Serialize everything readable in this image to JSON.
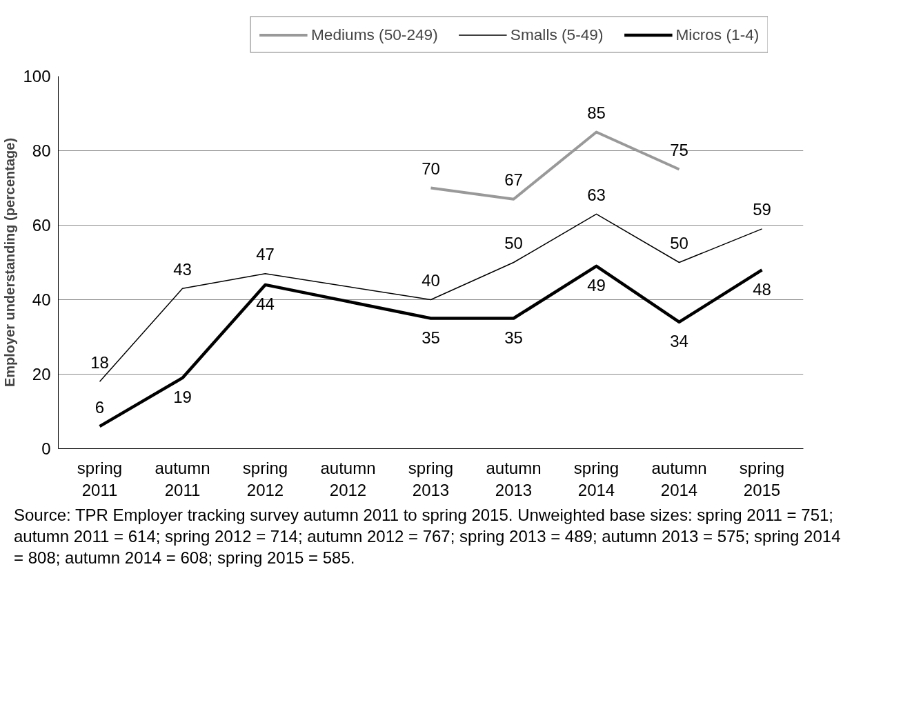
{
  "chart_data": {
    "type": "line",
    "categories": [
      "spring 2011",
      "autumn 2011",
      "spring 2012",
      "autumn 2012",
      "spring 2013",
      "autumn 2013",
      "spring 2014",
      "autumn 2014",
      "spring 2015"
    ],
    "series": [
      {
        "name": "Mediums (50-249)",
        "color": "#999999",
        "values": [
          null,
          null,
          null,
          null,
          70,
          67,
          85,
          75,
          null
        ]
      },
      {
        "name": "Smalls (5-49)",
        "color": "#000000",
        "values": [
          18,
          43,
          47,
          null,
          40,
          50,
          63,
          50,
          59
        ]
      },
      {
        "name": "Micros (1-4)",
        "color": "#000000",
        "values": [
          6,
          19,
          44,
          null,
          35,
          35,
          49,
          34,
          48
        ]
      }
    ],
    "ylabel": "Employer understanding (percentage)",
    "ylim": [
      0,
      100
    ],
    "yticks": [
      0,
      20,
      40,
      60,
      80,
      100
    ],
    "grid": "y",
    "legend": "top",
    "data_labels": true,
    "marker": "none",
    "line_style": "solid",
    "annotations": [
      "Source: TPR Employer tracking survey autumn 2011 to spring 2015. Unweighted base sizes: spring 2011 = 751; autumn 2011 = 614; spring 2012 = 714; autumn 2012 = 767; spring 2013 = 489; autumn 2013 = 575; spring 2014 = 808; autumn 2014 = 608; spring 2015 = 585."
    ]
  }
}
